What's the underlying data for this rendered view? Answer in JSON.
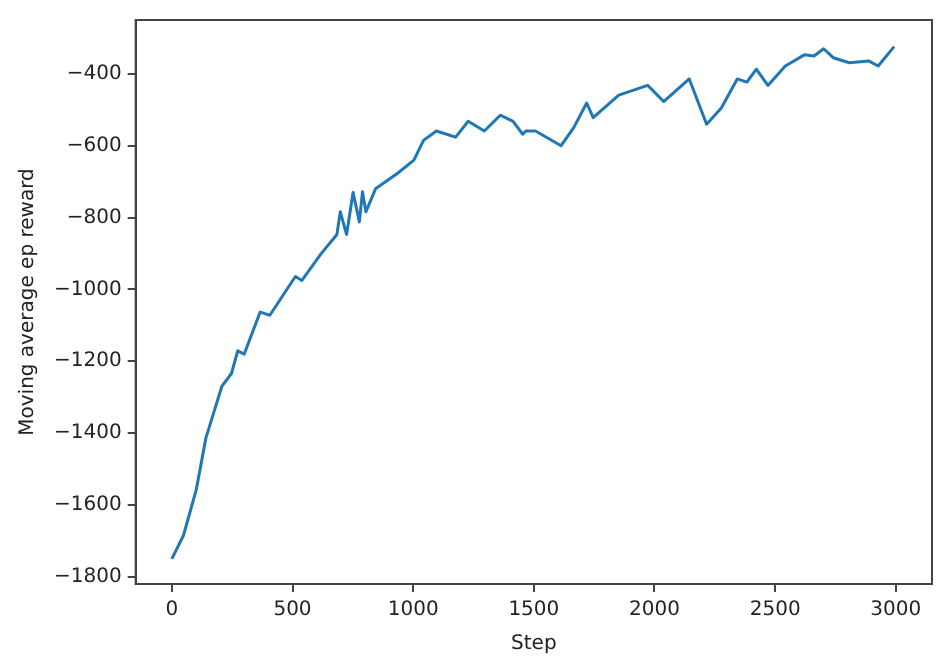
{
  "chart_data": {
    "type": "line",
    "xlabel": "Step",
    "ylabel": "Moving average ep reward",
    "grid": false,
    "legend": false,
    "marker": "none",
    "line_style": "solid",
    "xlim": [
      -150,
      3150
    ],
    "ylim": [
      -1820,
      -250
    ],
    "xticks": [
      0,
      500,
      1000,
      1500,
      2000,
      2500,
      3000
    ],
    "yticks": [
      -1800,
      -1600,
      -1400,
      -1200,
      -1000,
      -800,
      -600,
      -400
    ],
    "series": [
      {
        "color": "#1f77b4",
        "x": [
          0,
          48,
          101,
          141,
          207,
          247,
          273,
          300,
          366,
          406,
          512,
          539,
          618,
          684,
          698,
          724,
          751,
          777,
          790,
          804,
          844,
          937,
          1003,
          1043,
          1096,
          1176,
          1228,
          1295,
          1361,
          1414,
          1454,
          1467,
          1507,
          1613,
          1666,
          1719,
          1746,
          1852,
          1972,
          2038,
          2144,
          2216,
          2277,
          2343,
          2383,
          2422,
          2470,
          2542,
          2621,
          2661,
          2701,
          2741,
          2807,
          2887,
          2927,
          2993
        ],
        "values": [
          -1750,
          -1685,
          -1558,
          -1414,
          -1270,
          -1234,
          -1171,
          -1180,
          -1063,
          -1072,
          -964,
          -975,
          -901,
          -847,
          -784,
          -847,
          -730,
          -812,
          -728,
          -784,
          -720,
          -676,
          -640,
          -585,
          -559,
          -576,
          -532,
          -559,
          -515,
          -532,
          -568,
          -559,
          -559,
          -600,
          -549,
          -481,
          -522,
          -459,
          -432,
          -477,
          -414,
          -540,
          -495,
          -414,
          -423,
          -387,
          -432,
          -378,
          -347,
          -350,
          -330,
          -355,
          -369,
          -364,
          -378,
          -324
        ]
      }
    ]
  }
}
